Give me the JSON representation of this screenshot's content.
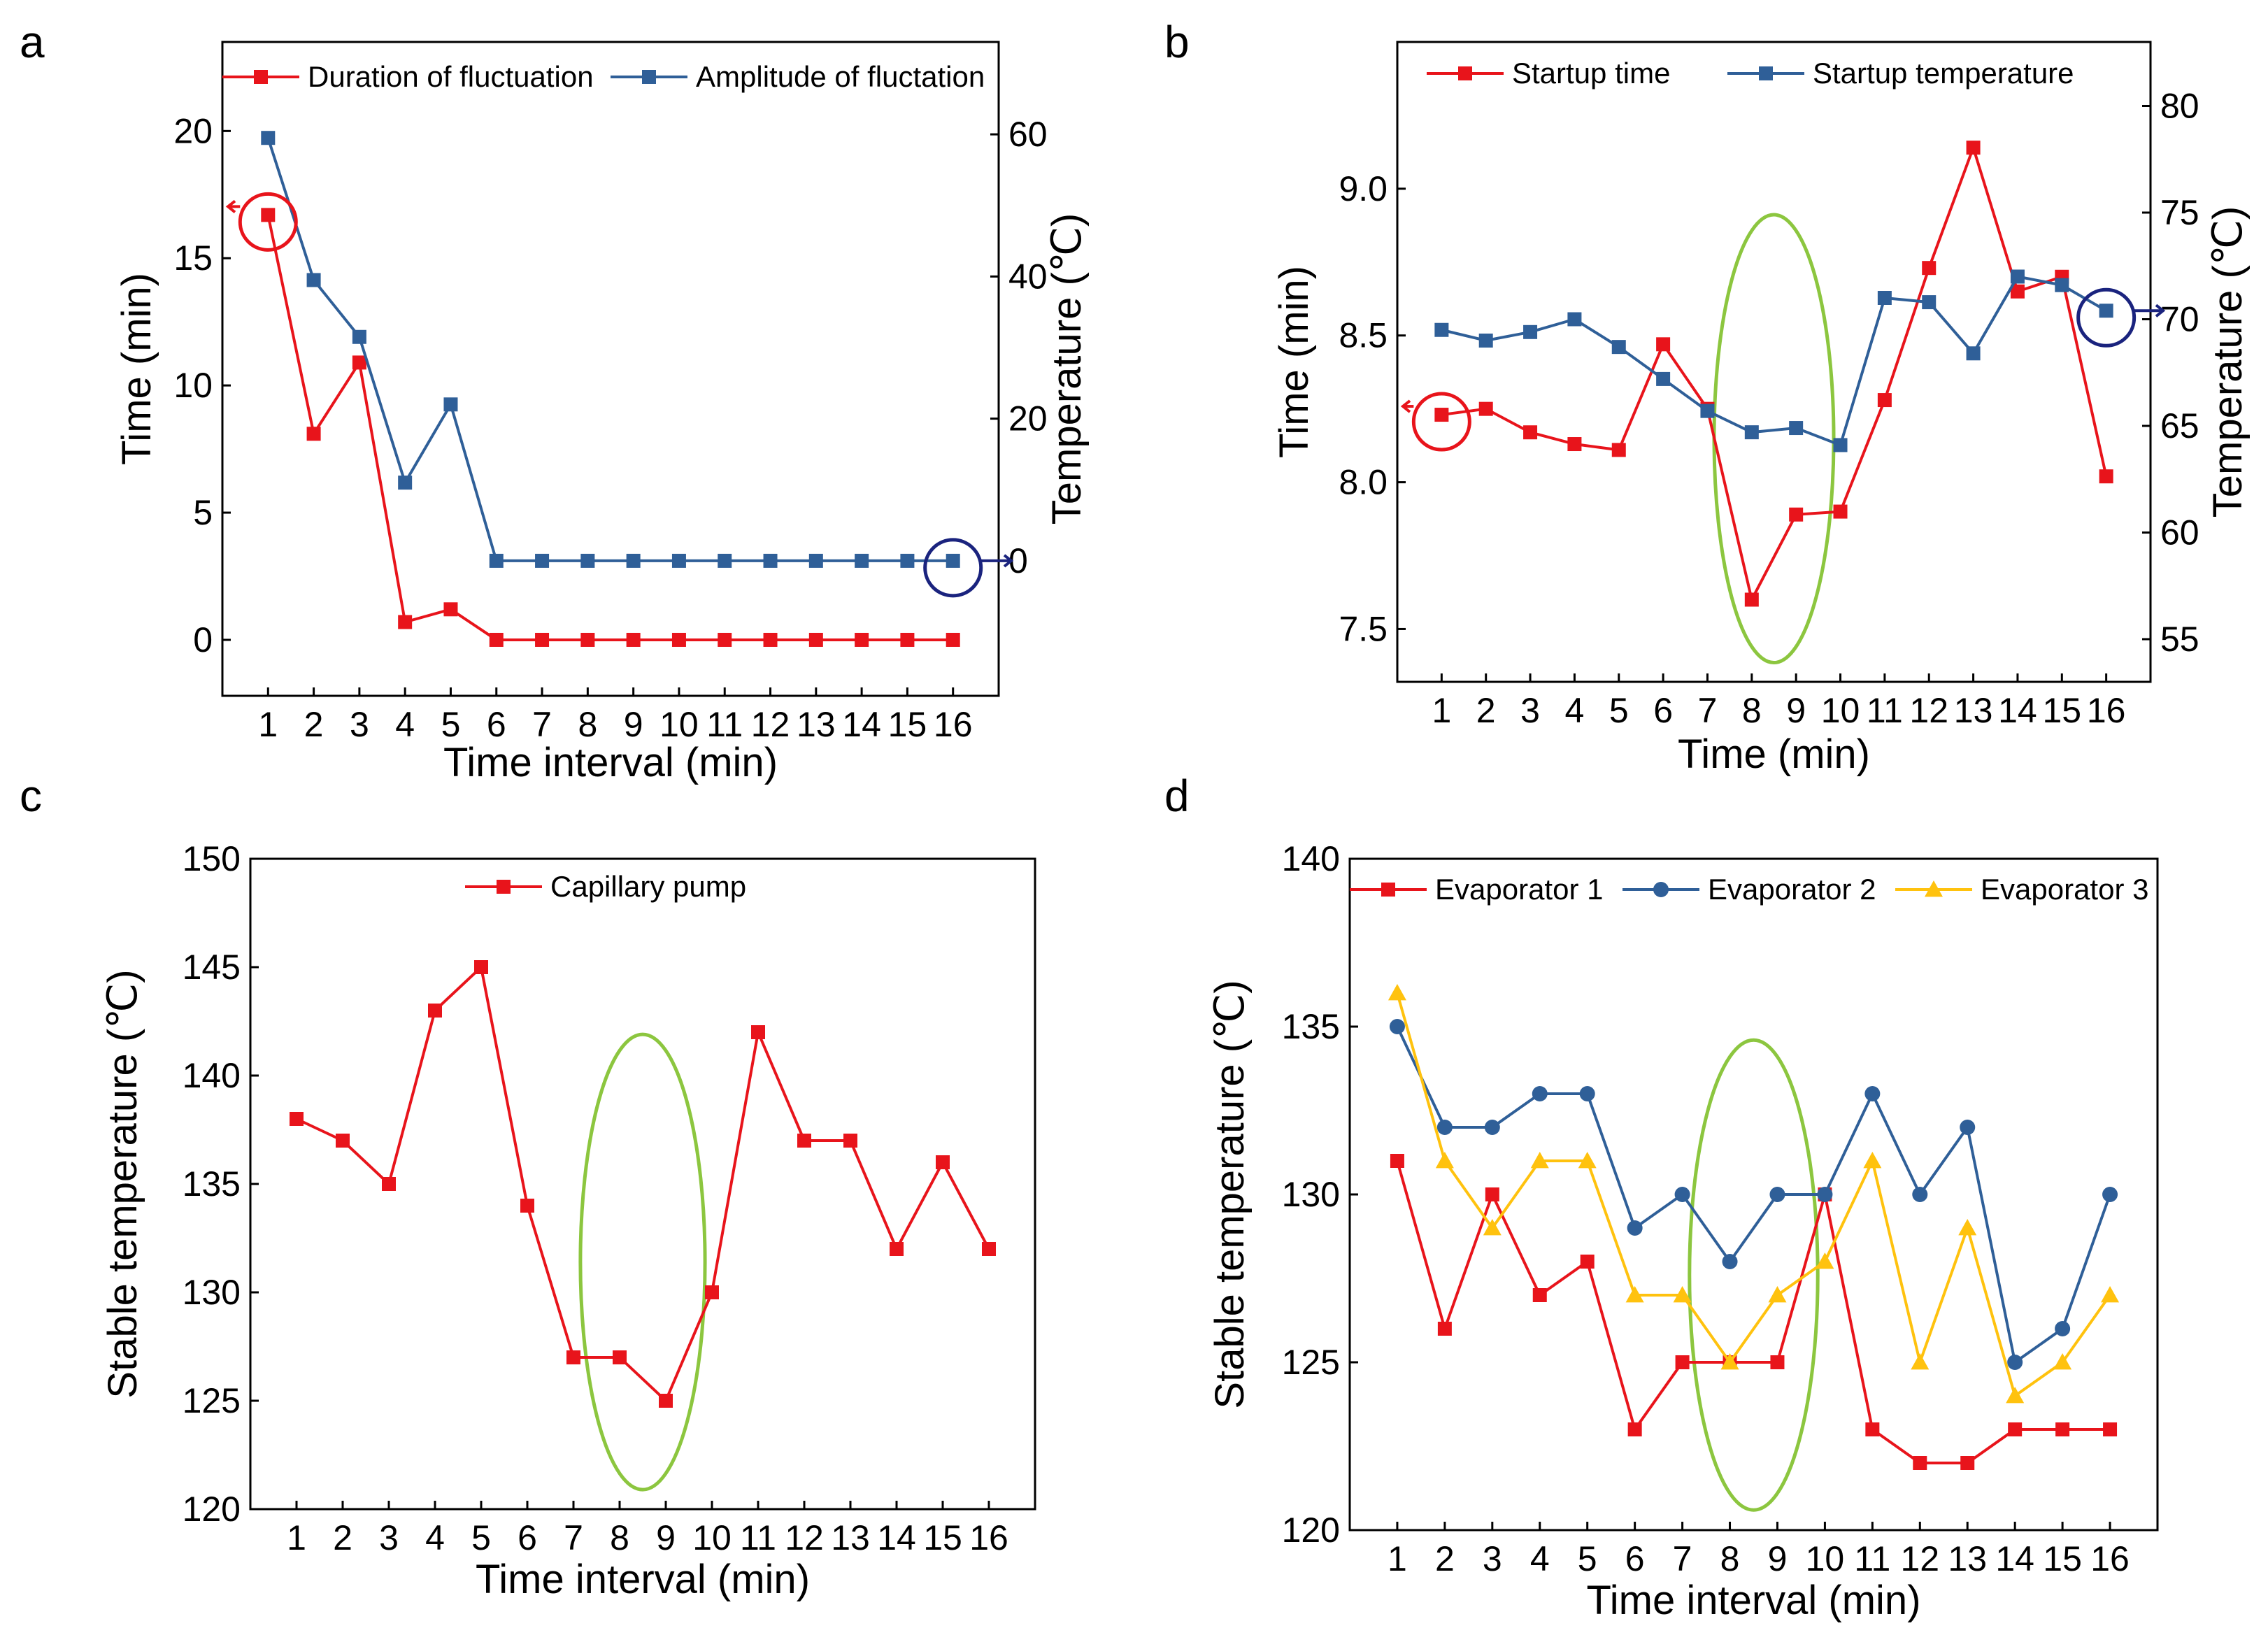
{
  "chart_data": [
    {
      "panel": "a",
      "type": "line",
      "categories": [
        "1",
        "2",
        "3",
        "4",
        "5",
        "6",
        "7",
        "8",
        "9",
        "10",
        "11",
        "12",
        "13",
        "14",
        "15",
        "16"
      ],
      "xlabel": "Time interval (min)",
      "ylabel": "Time (min)",
      "y2label": "Temperature (℃)",
      "ylim": [
        -2.2,
        23.5
      ],
      "y2lim": [
        -19,
        73
      ],
      "yticks": [
        "0",
        "5",
        "10",
        "15",
        "20"
      ],
      "y2ticks": [
        "0",
        "20",
        "40",
        "60"
      ],
      "legend_position": "top",
      "series": [
        {
          "name": "Duration of fluctuation",
          "axis": "left",
          "color": "#e8141b",
          "marker": "square",
          "values": [
            16.7,
            8.1,
            10.9,
            0.7,
            1.2,
            0,
            0,
            0,
            0,
            0,
            0,
            0,
            0,
            0,
            0,
            0
          ]
        },
        {
          "name": "Amplitude of fluctation",
          "axis": "right",
          "color": "#2f5f98",
          "marker": "square",
          "values": [
            59.5,
            39.5,
            31.5,
            11,
            22,
            0,
            0,
            0,
            0,
            0,
            0,
            0,
            0,
            0,
            0,
            0
          ]
        }
      ],
      "annotations": [
        {
          "shape": "circle",
          "color": "#e8141b",
          "at_category": 1,
          "series": 0,
          "arrow": "left"
        },
        {
          "shape": "circle",
          "color": "#1a237e",
          "at_category": 16,
          "series": 1,
          "arrow": "right"
        }
      ]
    },
    {
      "panel": "b",
      "type": "line",
      "categories": [
        "1",
        "2",
        "3",
        "4",
        "5",
        "6",
        "7",
        "8",
        "9",
        "10",
        "11",
        "12",
        "13",
        "14",
        "15",
        "16"
      ],
      "xlabel": "Time (min)",
      "ylabel": "Time (min)",
      "y2label": "Temperature (℃)",
      "ylim": [
        7.32,
        9.5
      ],
      "y2lim": [
        53,
        83
      ],
      "yticks": [
        "7.5",
        "8.0",
        "8.5",
        "9.0"
      ],
      "y2ticks": [
        "55",
        "60",
        "65",
        "70",
        "75",
        "80"
      ],
      "legend_position": "top",
      "series": [
        {
          "name": "Startup time",
          "axis": "left",
          "color": "#e8141b",
          "marker": "square",
          "values": [
            8.23,
            8.25,
            8.17,
            8.13,
            8.11,
            8.47,
            8.25,
            7.6,
            7.89,
            7.9,
            8.28,
            8.73,
            9.14,
            8.65,
            8.7,
            8.02
          ]
        },
        {
          "name": "Startup temperature",
          "axis": "right",
          "color": "#2f5f98",
          "marker": "square",
          "values": [
            69.5,
            69.0,
            69.4,
            70.0,
            68.7,
            67.2,
            65.7,
            64.7,
            64.9,
            64.1,
            71.0,
            70.8,
            68.4,
            72.0,
            71.6,
            70.4
          ]
        }
      ],
      "annotations": [
        {
          "shape": "circle",
          "color": "#e8141b",
          "at_category": 1,
          "series": 0,
          "arrow": "left"
        },
        {
          "shape": "circle",
          "color": "#1a237e",
          "at_category": 16,
          "series": 1,
          "arrow": "right"
        },
        {
          "shape": "ellipse",
          "color": "#8cc63f",
          "categories": [
            8,
            9
          ]
        }
      ]
    },
    {
      "panel": "c",
      "type": "line",
      "categories": [
        "1",
        "2",
        "3",
        "4",
        "5",
        "6",
        "7",
        "8",
        "9",
        "10",
        "11",
        "12",
        "13",
        "14",
        "15",
        "16"
      ],
      "xlabel": "Time interval (min)",
      "ylabel": "Stable temperature (℃)",
      "ylim": [
        120,
        150
      ],
      "yticks": [
        "120",
        "125",
        "130",
        "135",
        "140",
        "145",
        "150"
      ],
      "legend_position": "top",
      "series": [
        {
          "name": "Capillary pump",
          "axis": "left",
          "color": "#e8141b",
          "marker": "square",
          "values": [
            138,
            137,
            135,
            143,
            145,
            134,
            127,
            127,
            125,
            130,
            142,
            137,
            137,
            132,
            136,
            132
          ]
        }
      ],
      "annotations": [
        {
          "shape": "ellipse",
          "color": "#8cc63f",
          "categories": [
            8,
            9
          ]
        }
      ]
    },
    {
      "panel": "d",
      "type": "line",
      "categories": [
        "1",
        "2",
        "3",
        "4",
        "5",
        "6",
        "7",
        "8",
        "9",
        "10",
        "11",
        "12",
        "13",
        "14",
        "15",
        "16"
      ],
      "xlabel": "Time interval (min)",
      "ylabel": "Stable temperature (℃)",
      "ylim": [
        120,
        140
      ],
      "yticks": [
        "120",
        "125",
        "130",
        "135",
        "140"
      ],
      "legend_position": "top",
      "series": [
        {
          "name": "Evaporator 1",
          "axis": "left",
          "color": "#e8141b",
          "marker": "square",
          "values": [
            131,
            126,
            130,
            127,
            128,
            123,
            125,
            125,
            125,
            130,
            123,
            122,
            122,
            123,
            123,
            123
          ]
        },
        {
          "name": "Evaporator 2",
          "axis": "left",
          "color": "#2f5f98",
          "marker": "circle",
          "values": [
            135,
            132,
            132,
            133,
            133,
            129,
            130,
            128,
            130,
            130,
            133,
            130,
            132,
            125,
            126,
            130
          ]
        },
        {
          "name": "Evaporator 3",
          "axis": "left",
          "color": "#ffc20e",
          "marker": "triangle",
          "values": [
            136,
            131,
            129,
            131,
            131,
            127,
            127,
            125,
            127,
            128,
            131,
            125,
            129,
            124,
            125,
            127
          ]
        }
      ],
      "annotations": [
        {
          "shape": "ellipse",
          "color": "#8cc63f",
          "categories": [
            8,
            9
          ]
        }
      ]
    }
  ]
}
